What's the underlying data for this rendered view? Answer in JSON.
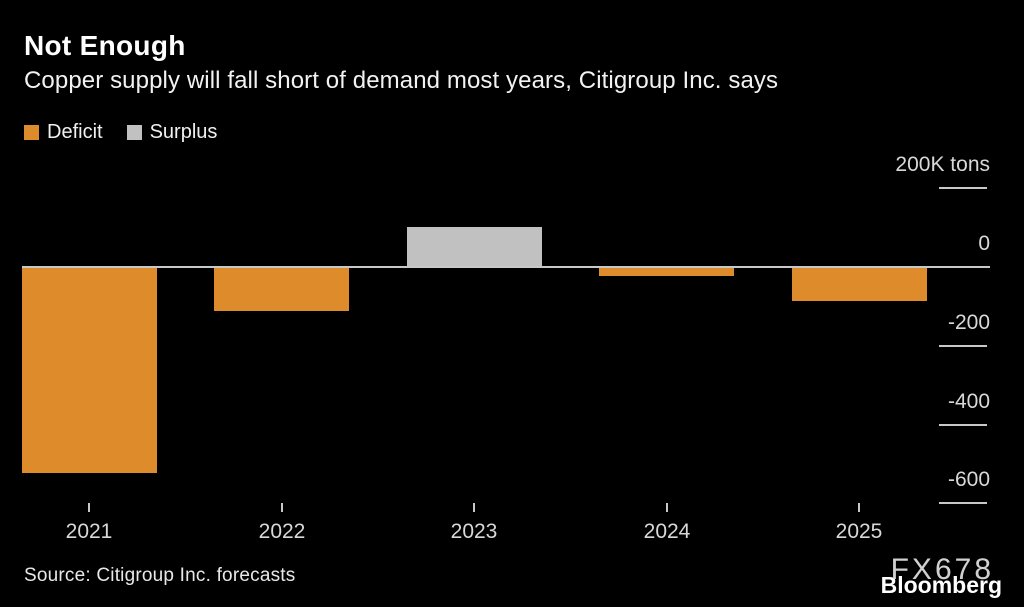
{
  "header": {
    "title": "Not Enough",
    "subtitle": "Copper supply will fall short of demand most years, Citigroup Inc. says"
  },
  "legend": [
    {
      "label": "Deficit",
      "color": "#de8c2b"
    },
    {
      "label": "Surplus",
      "color": "#c1c1c1"
    }
  ],
  "chart_data": {
    "type": "bar",
    "title": "Not Enough",
    "subtitle": "Copper supply will fall short of demand most years, Citigroup Inc. says",
    "categories": [
      "2021",
      "2022",
      "2023",
      "2024",
      "2025"
    ],
    "values": [
      -521,
      -110,
      100,
      -20,
      -85
    ],
    "value_unit": "K tons",
    "series_legend": [
      {
        "name": "Deficit",
        "applies_to": "negative values",
        "color": "#de8c2b"
      },
      {
        "name": "Surplus",
        "applies_to": "positive values",
        "color": "#c1c1c1"
      }
    ],
    "ylabel": "200K tons",
    "xlabel": "",
    "yticks": [
      200,
      0,
      -200,
      -400,
      -600
    ],
    "ytick_labels": [
      "200K tons",
      "0",
      "-200",
      "-400",
      "-600"
    ],
    "ylim": [
      -660,
      275
    ],
    "grid": false,
    "axis_side": "right",
    "legend_position": "top-left",
    "background": "#000000"
  },
  "footer": {
    "source": "Source: Citigroup Inc. forecasts"
  },
  "watermarks": {
    "fx678": "FX678",
    "bloomberg": "Bloomberg"
  },
  "colors": {
    "background": "#000000",
    "deficit": "#de8c2b",
    "surplus": "#c1c1c1",
    "axis_line": "#c8c8c8",
    "axis_text": "#d8d8d8",
    "title_text": "#ffffff"
  }
}
